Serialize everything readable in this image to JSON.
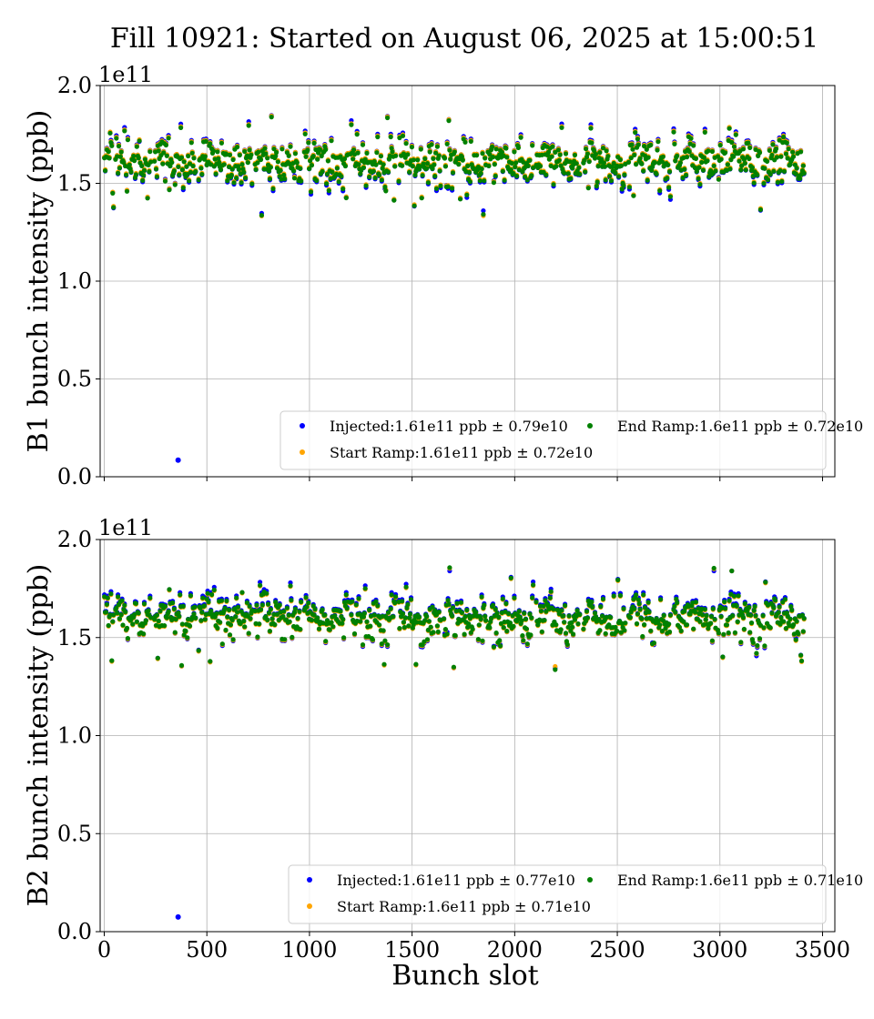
{
  "figure": {
    "title": "Fill 10921: Started on August 06, 2025 at 15:00:51"
  },
  "colors": {
    "injected": "#0000ff",
    "start_ramp": "#ffa500",
    "end_ramp": "#008000",
    "grid": "#b0b0b0"
  },
  "chart_data": [
    {
      "type": "scatter",
      "ylabel": "B1 bunch intensity (ppb)",
      "xlabel": "",
      "offset_text": "1e11",
      "xlim": [
        -20,
        3560
      ],
      "ylim": [
        0.0,
        2.0
      ],
      "xticks": [
        0,
        500,
        1000,
        1500,
        2000,
        2500,
        3000,
        3500
      ],
      "yticks": [
        0.0,
        0.5,
        1.0,
        1.5,
        2.0
      ],
      "ytick_labels": [
        "0.0",
        "0.5",
        "1.0",
        "1.5",
        "2.0"
      ],
      "grid": true,
      "legend_placement": "lower-right",
      "series": [
        {
          "name": "Injected:1.61e11 ppb ± 0.79e10",
          "key": "injected",
          "mean": 1.61,
          "std": 0.079,
          "outliers": [
            [
              360,
              0.085
            ]
          ]
        },
        {
          "name": "Start Ramp:1.61e11 ppb ± 0.72e10",
          "key": "start_ramp",
          "mean": 1.61,
          "std": 0.072,
          "outliers": []
        },
        {
          "name": "End Ramp:1.6e11 ppb ± 0.72e10",
          "key": "end_ramp",
          "mean": 1.6,
          "std": 0.072,
          "outliers": []
        }
      ],
      "filled_slots": [
        [
          1,
          45
        ],
        [
          55,
          230
        ],
        [
          245,
          445
        ],
        [
          460,
          720
        ],
        [
          735,
          960
        ],
        [
          975,
          1190
        ],
        [
          1200,
          1420
        ],
        [
          1435,
          1640
        ],
        [
          1655,
          1860
        ],
        [
          1870,
          2090
        ],
        [
          2105,
          2320
        ],
        [
          2335,
          2540
        ],
        [
          2555,
          2760
        ],
        [
          2775,
          2980
        ],
        [
          2990,
          3200
        ],
        [
          3210,
          3410
        ]
      ]
    },
    {
      "type": "scatter",
      "ylabel": "B2 bunch intensity (ppb)",
      "xlabel": "Bunch slot",
      "offset_text": "1e11",
      "xlim": [
        -20,
        3560
      ],
      "ylim": [
        0.0,
        2.0
      ],
      "xticks": [
        0,
        500,
        1000,
        1500,
        2000,
        2500,
        3000,
        3500
      ],
      "xtick_labels": [
        "0",
        "500",
        "1000",
        "1500",
        "2000",
        "2500",
        "3000",
        "3500"
      ],
      "yticks": [
        0.0,
        0.5,
        1.0,
        1.5,
        2.0
      ],
      "ytick_labels": [
        "0.0",
        "0.5",
        "1.0",
        "1.5",
        "2.0"
      ],
      "grid": true,
      "legend_placement": "lower-right",
      "series": [
        {
          "name": "Injected:1.61e11 ppb ± 0.77e10",
          "key": "injected",
          "mean": 1.61,
          "std": 0.077,
          "outliers": [
            [
              360,
              0.075
            ]
          ]
        },
        {
          "name": "Start Ramp:1.6e11 ppb ± 0.71e10",
          "key": "start_ramp",
          "mean": 1.6,
          "std": 0.071,
          "outliers": []
        },
        {
          "name": "End Ramp:1.6e11 ppb ± 0.71e10",
          "key": "end_ramp",
          "mean": 1.6,
          "std": 0.071,
          "outliers": []
        }
      ],
      "filled_slots": [
        [
          1,
          45
        ],
        [
          55,
          230
        ],
        [
          245,
          445
        ],
        [
          460,
          720
        ],
        [
          735,
          960
        ],
        [
          975,
          1190
        ],
        [
          1200,
          1420
        ],
        [
          1435,
          1640
        ],
        [
          1655,
          1860
        ],
        [
          1870,
          2090
        ],
        [
          2105,
          2320
        ],
        [
          2335,
          2540
        ],
        [
          2555,
          2760
        ],
        [
          2775,
          2980
        ],
        [
          2990,
          3200
        ],
        [
          3210,
          3410
        ]
      ]
    }
  ]
}
